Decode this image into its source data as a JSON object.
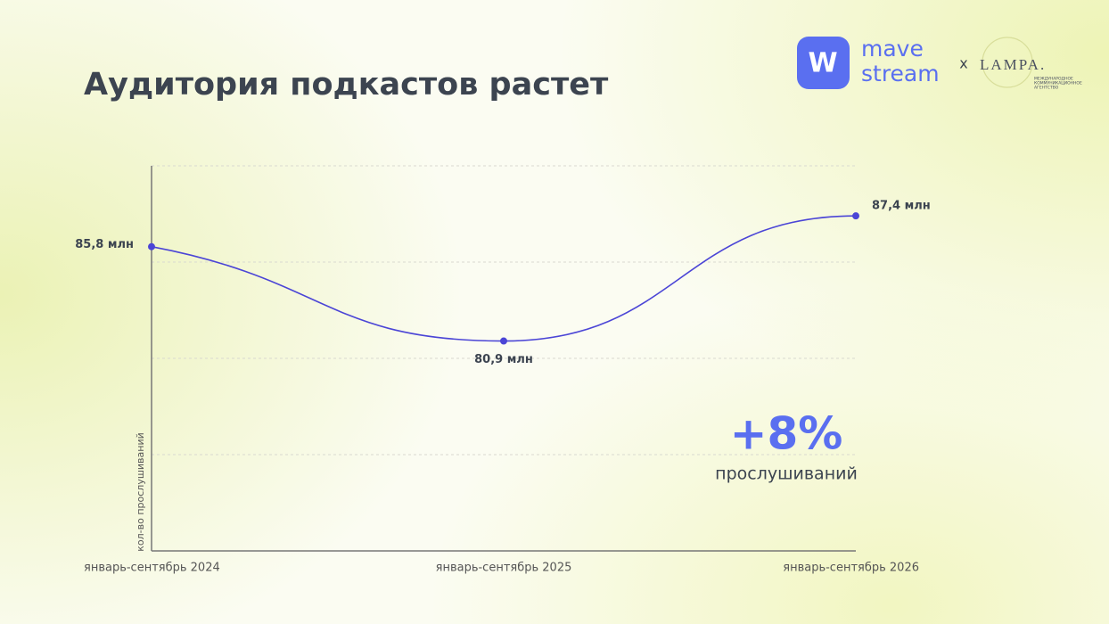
{
  "header": {
    "logo_mark": "W",
    "brand": [
      "mave",
      "stream"
    ],
    "separator": "x",
    "partner": "LAMPA.",
    "partner_caption": [
      "МЕЖДУНАРОДНОЕ",
      "КОММУНИКАЦИОННОЕ",
      "АГЕНТСТВО"
    ]
  },
  "chart_data": {
    "type": "line",
    "title": "Аудитория подкастов растет",
    "y_label": "кол-во прослушиваний",
    "categories": [
      "январь-сентябрь 2024",
      "январь-сентябрь 2025",
      "январь-сентябрь 2026"
    ],
    "series": [
      {
        "name": "Аудитория",
        "color": "#4b45d6",
        "values": [
          85.8,
          80.9,
          87.4
        ],
        "value_labels": [
          "85,8 млн",
          "80,9 млн",
          "87,4 млн"
        ]
      }
    ],
    "ylim": [
      70,
      90
    ],
    "ygrid": [
      75,
      80,
      85,
      90
    ],
    "grid": true,
    "annotation": {
      "value": "+8%",
      "caption": "прослушиваний"
    }
  }
}
